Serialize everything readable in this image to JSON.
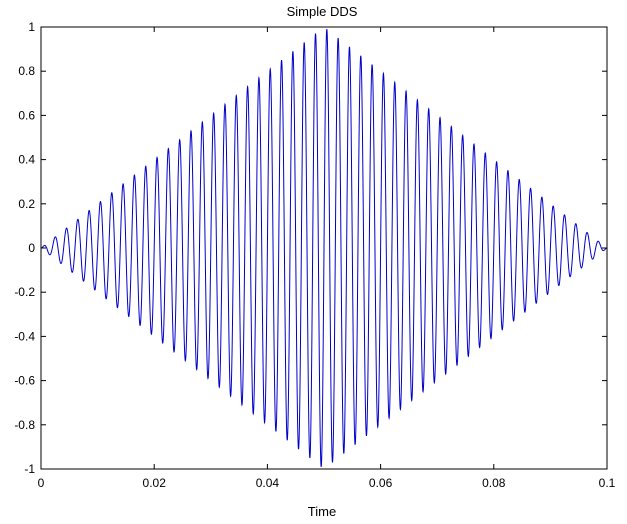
{
  "chart_data": {
    "type": "line",
    "title": "Simple DDS",
    "xlabel": "Time",
    "ylabel": "",
    "xlim": [
      0,
      0.1
    ],
    "ylim": [
      -1,
      1
    ],
    "x_ticks": [
      0,
      0.02,
      0.04,
      0.06,
      0.08,
      0.1
    ],
    "x_tick_labels": [
      "0",
      "0.02",
      "0.04",
      "0.06",
      "0.08",
      "0.1"
    ],
    "y_ticks": [
      -1,
      -0.8,
      -0.6,
      -0.4,
      -0.2,
      0,
      0.2,
      0.4,
      0.6,
      0.8,
      1
    ],
    "y_tick_labels": [
      "-1",
      "-0.8",
      "-0.6",
      "-0.4",
      "-0.2",
      "0",
      "0.2",
      "0.4",
      "0.6",
      "0.8",
      "1"
    ],
    "grid": false,
    "line_color": "#0000cc",
    "series": [
      {
        "description_of_signal": "sine carrier with triangular amplitude envelope",
        "carrier_frequency_hz": 500,
        "envelope": {
          "type": "triangle",
          "x": [
            0,
            0.05,
            0.1
          ],
          "y": [
            0,
            1,
            0
          ]
        },
        "x": [
          0,
          0.0025,
          0.005,
          0.0075,
          0.01,
          0.0125,
          0.015,
          0.0175,
          0.02,
          0.0225,
          0.025,
          0.0275,
          0.03,
          0.0325,
          0.035,
          0.0375,
          0.04,
          0.0425,
          0.045,
          0.0475,
          0.05,
          0.0525,
          0.055,
          0.0575,
          0.06,
          0.0625,
          0.065,
          0.0675,
          0.07,
          0.0725,
          0.075,
          0.0775,
          0.08,
          0.0825,
          0.085,
          0.0875,
          0.09,
          0.0925,
          0.095,
          0.0975,
          0.1
        ],
        "peak_envelope": [
          0,
          0.05,
          0.1,
          0.15,
          0.2,
          0.25,
          0.3,
          0.35,
          0.4,
          0.45,
          0.5,
          0.55,
          0.6,
          0.65,
          0.7,
          0.75,
          0.8,
          0.85,
          0.9,
          0.95,
          1.0,
          0.95,
          0.9,
          0.85,
          0.8,
          0.75,
          0.7,
          0.65,
          0.6,
          0.55,
          0.5,
          0.45,
          0.4,
          0.35,
          0.3,
          0.25,
          0.2,
          0.15,
          0.1,
          0.05,
          0
        ]
      }
    ]
  }
}
